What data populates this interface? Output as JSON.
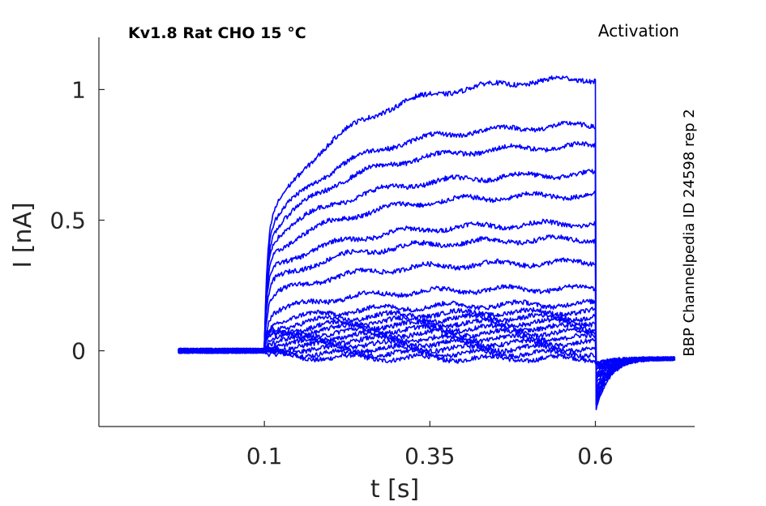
{
  "header": {
    "title": "Kv1.8  Rat  CHO  15 °C",
    "protocol": "Activation",
    "source": "BBP Channelpedia ID 24598 rep 2"
  },
  "colors": {
    "trace": "#0000ff",
    "axis": "#262626",
    "background": "#ffffff"
  },
  "chart_data": {
    "type": "line",
    "title": "Kv1.8  Rat  CHO  15 °C",
    "xlabel": "t [s]",
    "ylabel": "I [nA]",
    "xlim": [
      -0.15,
      0.75
    ],
    "ylim": [
      -0.29,
      1.2
    ],
    "xticks": [
      0.1,
      0.35,
      0.6
    ],
    "xtick_labels": [
      "0.1",
      "0.35",
      "0.6"
    ],
    "yticks": [
      0,
      0.5,
      1
    ],
    "ytick_labels": [
      "0",
      "0.5",
      "1"
    ],
    "grid": false,
    "legend": "none",
    "stimulus": {
      "onset": 0.1,
      "offset": 0.6,
      "start": -0.03,
      "end": 0.72
    },
    "series": [
      {
        "peak_current": -0.03,
        "initial_current": -0.02,
        "tail_current": -0.05
      },
      {
        "peak_current": -0.01,
        "initial_current": -0.01,
        "tail_current": -0.05
      },
      {
        "peak_current": 0.01,
        "initial_current": 0.0,
        "tail_current": -0.06
      },
      {
        "peak_current": 0.03,
        "initial_current": 0.01,
        "tail_current": -0.06
      },
      {
        "peak_current": 0.05,
        "initial_current": 0.02,
        "tail_current": -0.07
      },
      {
        "peak_current": 0.07,
        "initial_current": 0.03,
        "tail_current": -0.08
      },
      {
        "peak_current": 0.09,
        "initial_current": 0.04,
        "tail_current": -0.09
      },
      {
        "peak_current": 0.11,
        "initial_current": 0.05,
        "tail_current": -0.1
      },
      {
        "peak_current": 0.13,
        "initial_current": 0.06,
        "tail_current": -0.11
      },
      {
        "peak_current": 0.15,
        "initial_current": 0.08,
        "tail_current": -0.12
      },
      {
        "peak_current": 0.18,
        "initial_current": 0.1,
        "tail_current": -0.13
      },
      {
        "peak_current": 0.24,
        "initial_current": 0.14,
        "tail_current": -0.15
      },
      {
        "peak_current": 0.34,
        "initial_current": 0.2,
        "tail_current": -0.16
      },
      {
        "peak_current": 0.43,
        "initial_current": 0.25,
        "tail_current": -0.17
      },
      {
        "peak_current": 0.49,
        "initial_current": 0.3,
        "tail_current": -0.18
      },
      {
        "peak_current": 0.6,
        "initial_current": 0.35,
        "tail_current": -0.19
      },
      {
        "peak_current": 0.68,
        "initial_current": 0.4,
        "tail_current": -0.2
      },
      {
        "peak_current": 0.79,
        "initial_current": 0.42,
        "tail_current": -0.21
      },
      {
        "peak_current": 0.87,
        "initial_current": 0.45,
        "tail_current": -0.22
      },
      {
        "peak_current": 1.05,
        "initial_current": 0.47,
        "tail_current": -0.24
      }
    ]
  }
}
